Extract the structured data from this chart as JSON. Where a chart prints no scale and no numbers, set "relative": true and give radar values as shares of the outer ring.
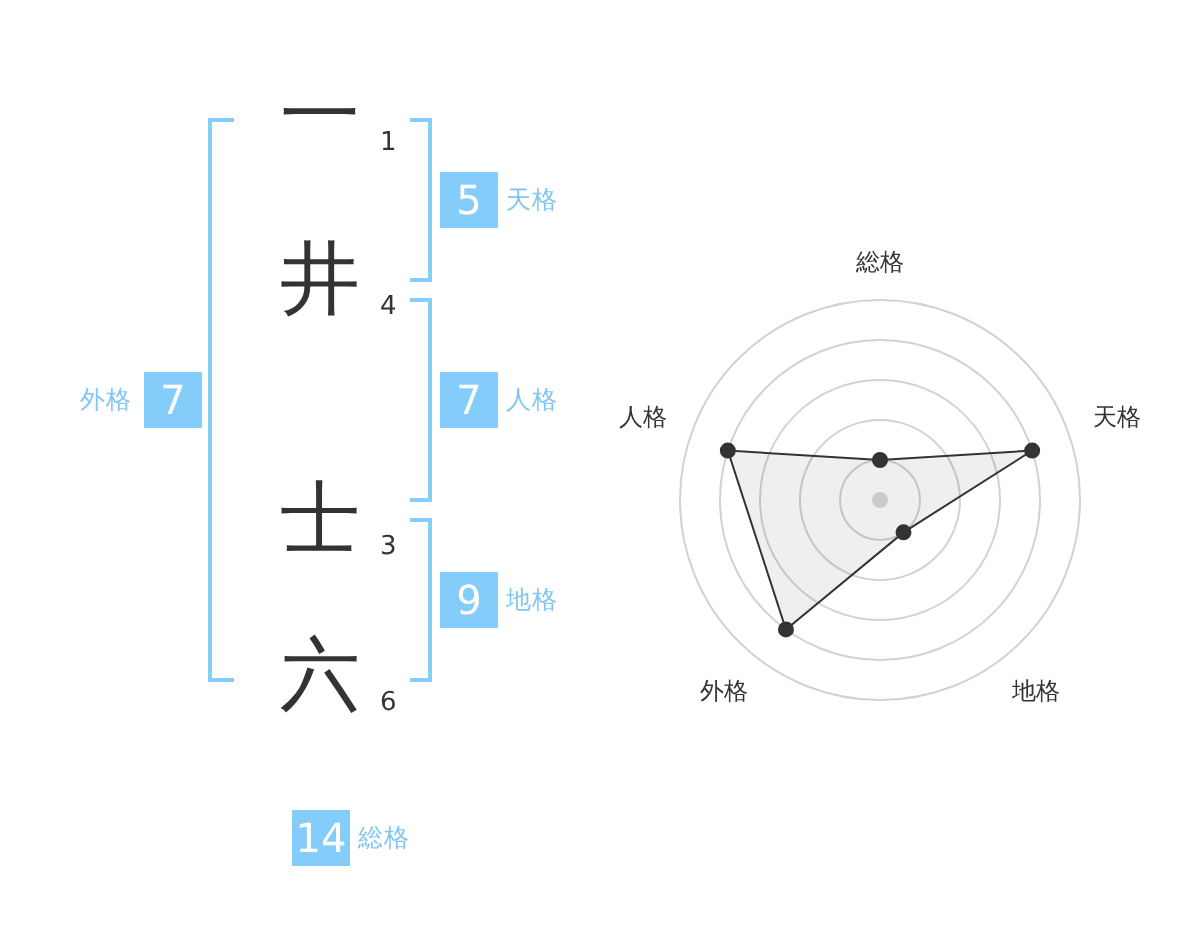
{
  "chart_data": [
    {
      "type": "other",
      "categories": [
        "一",
        "井",
        "士",
        "六"
      ],
      "values": [
        1,
        4,
        3,
        6
      ],
      "data_labels": true,
      "annotations": [
        "5",
        "天格",
        "7",
        "人格",
        "9",
        "地格",
        "7",
        "外格",
        "14",
        "総格"
      ]
    },
    {
      "type": "radar",
      "categories": [
        "総格",
        "天格",
        "地格",
        "外格",
        "人格"
      ],
      "relative": true,
      "series": [
        {
          "color": "#333333",
          "values": [
            0.2,
            0.8,
            0.2,
            0.8,
            0.8
          ]
        }
      ],
      "grid": true,
      "marker": "circle"
    }
  ]
}
